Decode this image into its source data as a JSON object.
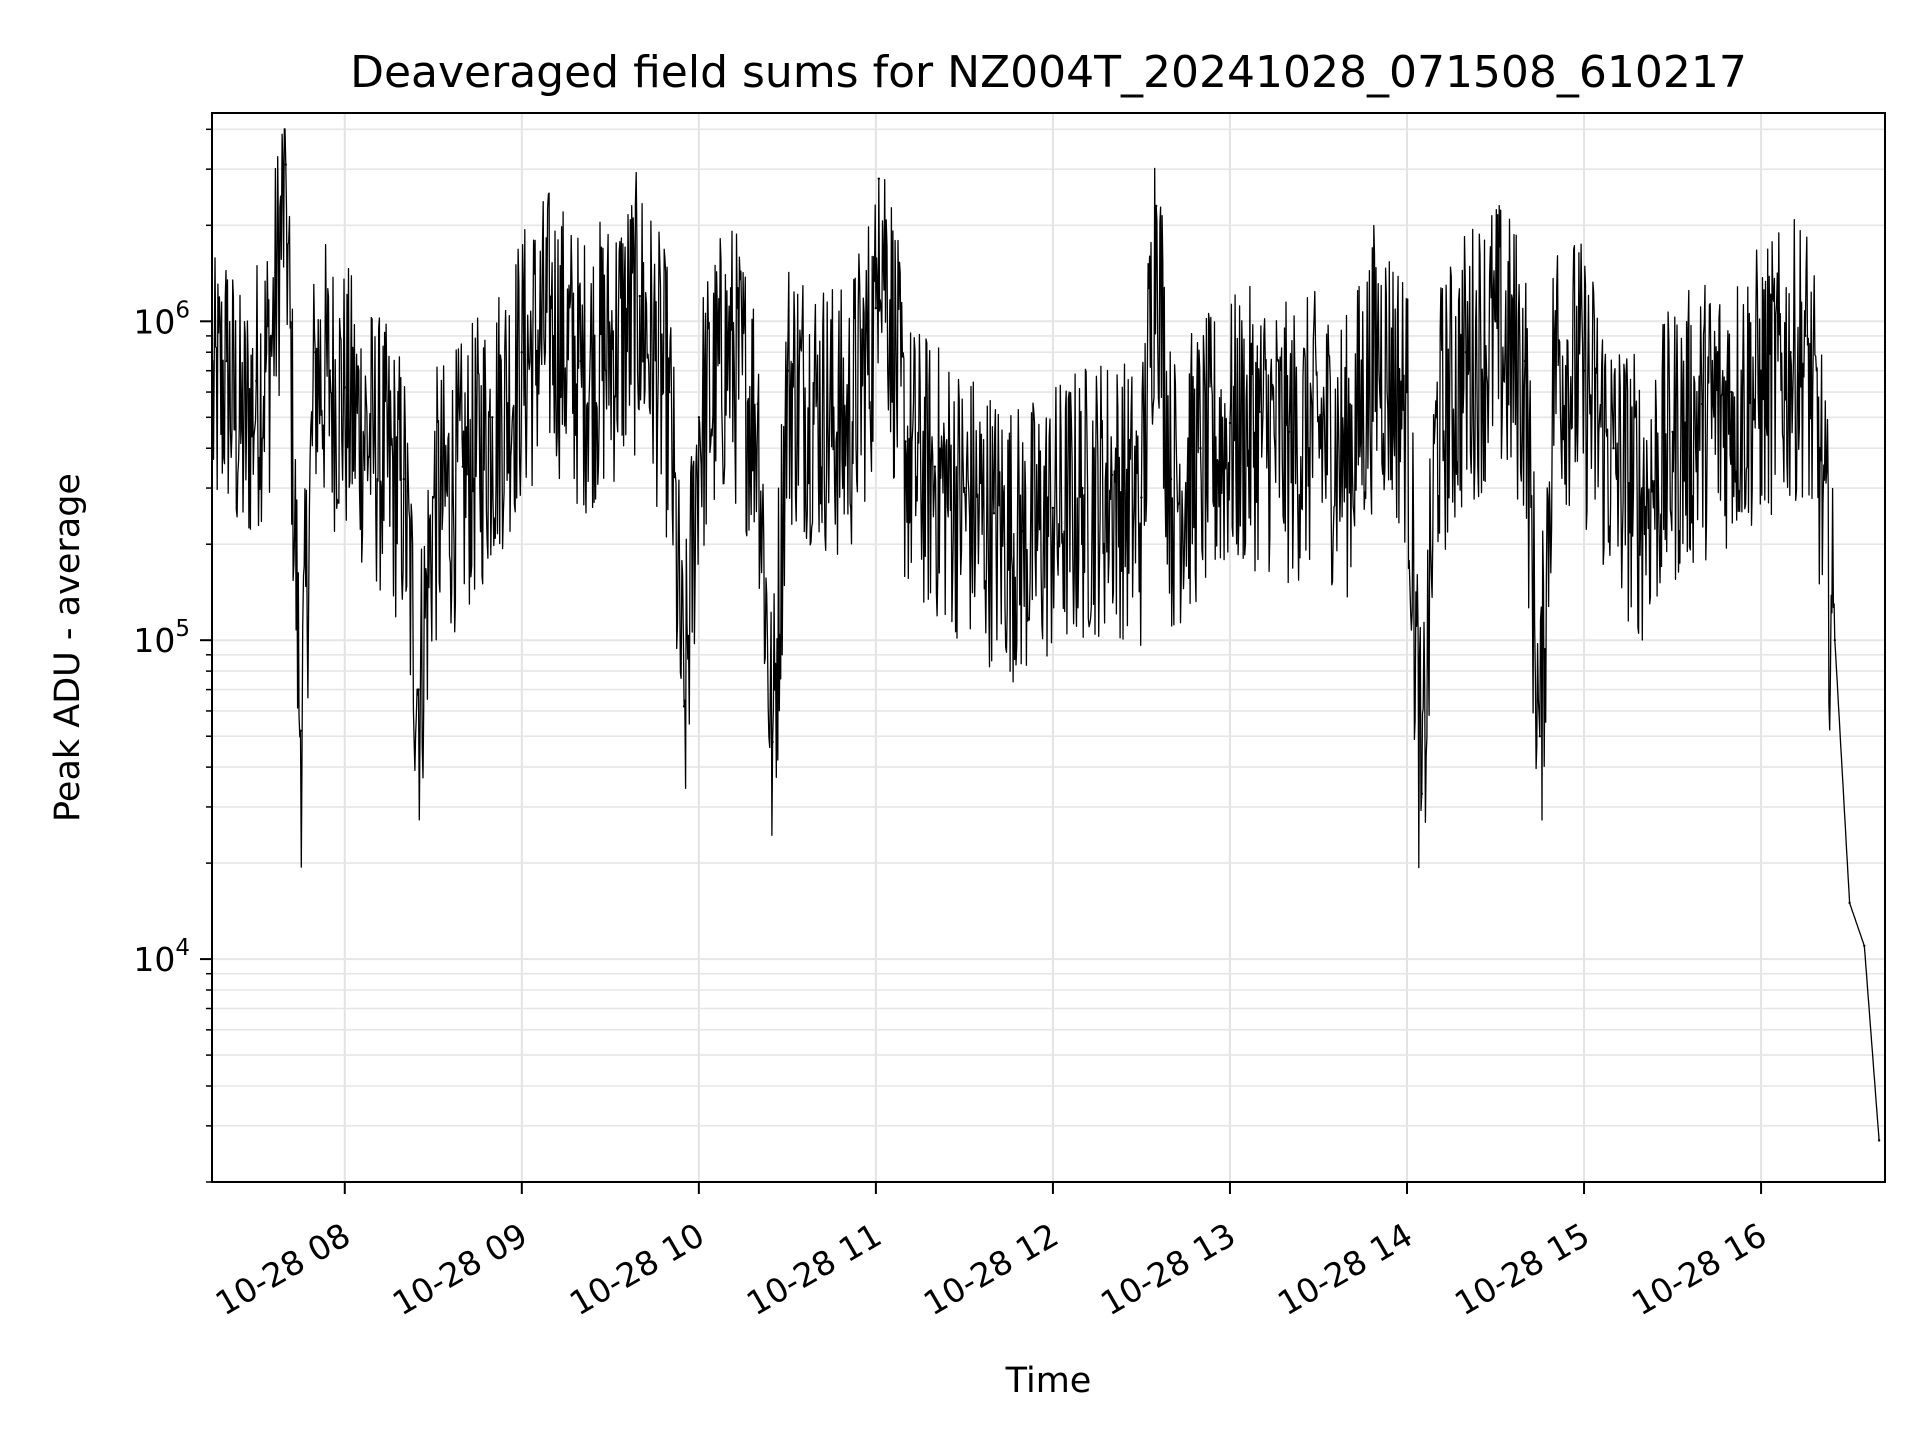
{
  "chart_data": {
    "type": "line",
    "title": "Deaveraged field sums for NZ004T_20241028_071508_610217",
    "xlabel": "Time",
    "ylabel": "Peak ADU - average",
    "yscale": "log",
    "grid": true,
    "x_range": [
      "10-28 07:15",
      "10-28 16:42"
    ],
    "ylim": [
      2000,
      4500000
    ],
    "x_ticks": [
      "10-28 08",
      "10-28 09",
      "10-28 10",
      "10-28 11",
      "10-28 12",
      "10-28 13",
      "10-28 14",
      "10-28 15",
      "10-28 16"
    ],
    "y_ticks": [
      {
        "value": 10000,
        "base": "10",
        "exp": "4"
      },
      {
        "value": 100000,
        "base": "10",
        "exp": "5"
      },
      {
        "value": 1000000,
        "base": "10",
        "exp": "6"
      }
    ],
    "series": [
      {
        "color": "#000000",
        "points": [
          [
            "10-28 07:15",
            600000
          ],
          [
            "10-28 07:20",
            750000
          ],
          [
            "10-28 07:25",
            480000
          ],
          [
            "10-28 07:30",
            650000
          ],
          [
            "10-28 07:35",
            900000
          ],
          [
            "10-28 07:40",
            3100000
          ],
          [
            "10-28 07:45",
            52000
          ],
          [
            "10-28 07:50",
            800000
          ],
          [
            "10-28 07:55",
            700000
          ],
          [
            "10-28 08:00",
            620000
          ],
          [
            "10-28 08:10",
            450000
          ],
          [
            "10-28 08:20",
            320000
          ],
          [
            "10-28 08:25",
            70000
          ],
          [
            "10-28 08:30",
            280000
          ],
          [
            "10-28 08:40",
            350000
          ],
          [
            "10-28 08:50",
            500000
          ],
          [
            "10-28 09:00",
            800000
          ],
          [
            "10-28 09:10",
            1100000
          ],
          [
            "10-28 09:20",
            750000
          ],
          [
            "10-28 09:30",
            900000
          ],
          [
            "10-28 09:40",
            1200000
          ],
          [
            "10-28 09:50",
            600000
          ],
          [
            "10-28 09:55",
            62000
          ],
          [
            "10-28 10:00",
            500000
          ],
          [
            "10-28 10:10",
            900000
          ],
          [
            "10-28 10:20",
            550000
          ],
          [
            "10-28 10:25",
            48000
          ],
          [
            "10-28 10:30",
            700000
          ],
          [
            "10-28 10:40",
            600000
          ],
          [
            "10-28 10:50",
            500000
          ],
          [
            "10-28 11:00",
            1100000
          ],
          [
            "10-28 11:01",
            2800000
          ],
          [
            "10-28 11:10",
            420000
          ],
          [
            "10-28 11:20",
            350000
          ],
          [
            "10-28 11:30",
            300000
          ],
          [
            "10-28 11:40",
            250000
          ],
          [
            "10-28 11:50",
            220000
          ],
          [
            "10-28 12:00",
            260000
          ],
          [
            "10-28 12:10",
            300000
          ],
          [
            "10-28 12:20",
            330000
          ],
          [
            "10-28 12:30",
            280000
          ],
          [
            "10-28 12:35",
            2300000
          ],
          [
            "10-28 12:40",
            320000
          ],
          [
            "10-28 12:50",
            400000
          ],
          [
            "10-28 13:00",
            480000
          ],
          [
            "10-28 13:10",
            520000
          ],
          [
            "10-28 13:20",
            450000
          ],
          [
            "10-28 13:30",
            500000
          ],
          [
            "10-28 13:40",
            420000
          ],
          [
            "10-28 13:50",
            900000
          ],
          [
            "10-28 14:00",
            600000
          ],
          [
            "10-28 14:05",
            33000
          ],
          [
            "10-28 14:10",
            500000
          ],
          [
            "10-28 14:20",
            800000
          ],
          [
            "10-28 14:30",
            1000000
          ],
          [
            "10-28 14:40",
            750000
          ],
          [
            "10-28 14:45",
            50000
          ],
          [
            "10-28 14:50",
            900000
          ],
          [
            "10-28 15:00",
            700000
          ],
          [
            "10-28 15:10",
            400000
          ],
          [
            "10-28 15:20",
            300000
          ],
          [
            "10-28 15:30",
            450000
          ],
          [
            "10-28 15:40",
            550000
          ],
          [
            "10-28 15:50",
            600000
          ],
          [
            "10-28 16:00",
            700000
          ],
          [
            "10-28 16:10",
            800000
          ],
          [
            "10-28 16:15",
            900000
          ],
          [
            "10-28 16:20",
            400000
          ],
          [
            "10-28 16:25",
            100000
          ],
          [
            "10-28 16:30",
            15000
          ],
          [
            "10-28 16:35",
            11000
          ],
          [
            "10-28 16:40",
            2700
          ]
        ]
      }
    ]
  }
}
